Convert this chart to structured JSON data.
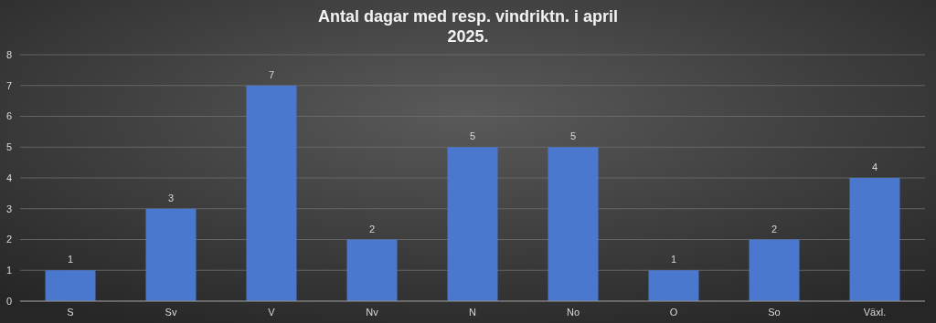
{
  "chart_data": {
    "type": "bar",
    "title": "Antal dagar med resp. vindriktn. i april 2025.",
    "categories": [
      "S",
      "Sv",
      "V",
      "Nv",
      "N",
      "No",
      "O",
      "So",
      "Växl."
    ],
    "values": [
      1,
      3,
      7,
      2,
      5,
      5,
      1,
      2,
      4
    ],
    "color": "#4a78cf",
    "ylim": [
      0,
      8
    ],
    "yticks": [
      0,
      1,
      2,
      3,
      4,
      5,
      6,
      7,
      8
    ],
    "grid": "y",
    "data_labels": true
  }
}
